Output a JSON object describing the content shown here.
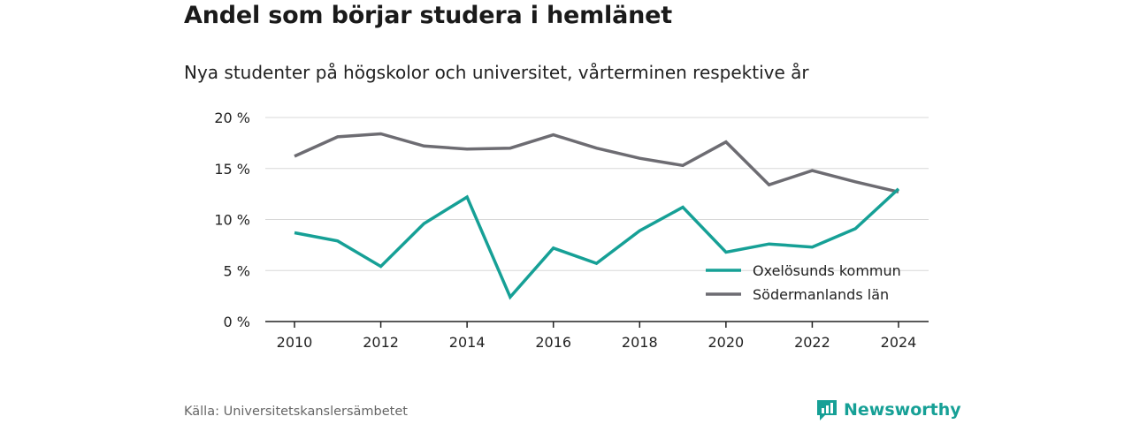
{
  "header": {
    "title": "Andel som börjar studera i hemlänet",
    "subtitle": "Nya studenter på högskolor och universitet, vårterminen respektive år"
  },
  "footer": {
    "source": "Källa: Universitetskanslersämbetet",
    "brand": "Newsworthy",
    "brand_icon": "newsworthy-logo-icon"
  },
  "colors": {
    "oxelosund": "#16a096",
    "sodermanland": "#6d6c72",
    "grid": "#d8d8d8",
    "axis": "#222222"
  },
  "chart_data": {
    "type": "line",
    "title": "Andel som börjar studera i hemlänet",
    "subtitle": "Nya studenter på högskolor och universitet, vårterminen respektive år",
    "x": [
      2010,
      2011,
      2012,
      2013,
      2014,
      2015,
      2016,
      2017,
      2018,
      2019,
      2020,
      2021,
      2022,
      2023,
      2024
    ],
    "x_ticks": [
      "2010",
      "2012",
      "2014",
      "2016",
      "2018",
      "2020",
      "2022",
      "2024"
    ],
    "y_ticks": [
      "0 %",
      "5 %",
      "10 %",
      "15 %",
      "20 %"
    ],
    "ylim": [
      0,
      20
    ],
    "grid": true,
    "legend_position": "bottom-right",
    "series": [
      {
        "name": "Oxelösunds kommun",
        "color": "#16a096",
        "values": [
          8.7,
          7.9,
          5.4,
          9.6,
          12.2,
          2.4,
          7.2,
          5.7,
          8.9,
          11.2,
          6.8,
          7.6,
          7.3,
          9.1,
          13.0
        ]
      },
      {
        "name": "Södermanlands län",
        "color": "#6d6c72",
        "values": [
          16.2,
          18.1,
          18.4,
          17.2,
          16.9,
          17.0,
          18.3,
          17.0,
          16.0,
          15.3,
          17.6,
          13.4,
          14.8,
          13.7,
          12.7
        ]
      }
    ]
  }
}
